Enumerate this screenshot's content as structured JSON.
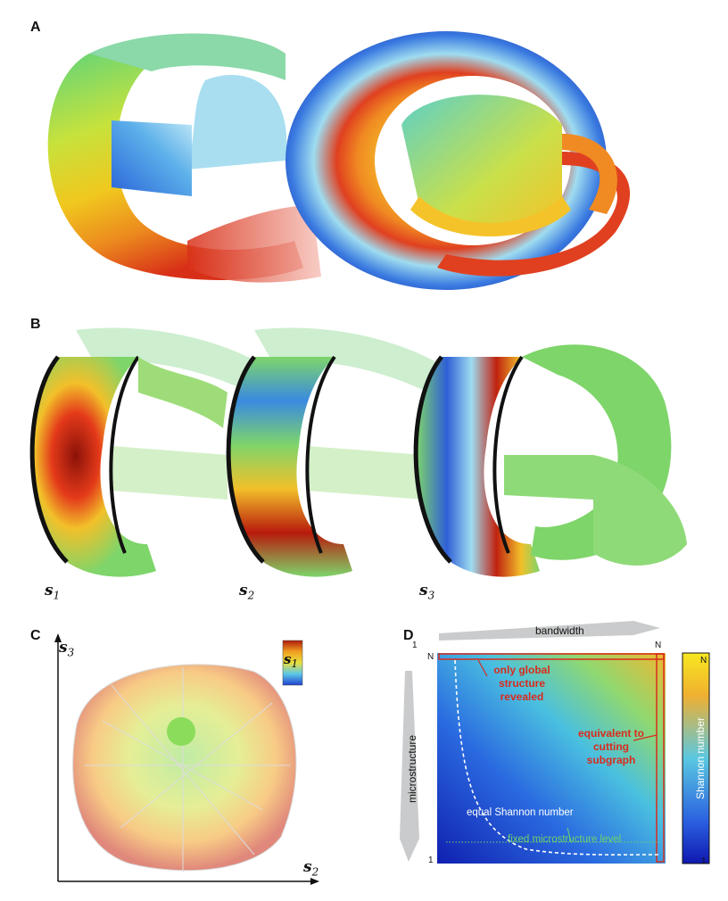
{
  "panels": {
    "a": {
      "label": "A"
    },
    "b": {
      "label": "B",
      "captions": [
        {
          "sym": "s",
          "sub": "1"
        },
        {
          "sym": "s",
          "sub": "2"
        },
        {
          "sym": "s",
          "sub": "3"
        }
      ]
    },
    "c": {
      "label": "C",
      "y_axis": "s",
      "y_sub": "3",
      "x_axis": "s",
      "x_sub": "2",
      "legend_sym": "s",
      "legend_sub": "1"
    },
    "d": {
      "label": "D",
      "top_axis": "bandwidth",
      "left_axis": "microstructure",
      "top_left_tick": "1",
      "top_right_tick": "N",
      "left_top_tick": "N",
      "left_bottom_tick": "1",
      "ann_global_1": "only global",
      "ann_global_2": "structure",
      "ann_global_3": "revealed",
      "ann_cut_1": "equivalent to",
      "ann_cut_2": "cutting",
      "ann_cut_3": "subgraph",
      "ann_equal": "equal Shannon number",
      "ann_fixed": "fixed microstructure level",
      "colorbar_label": "Shannon number",
      "colorbar_top": "N",
      "colorbar_bottom": "1",
      "colors": {
        "annotation": "#d92b1c",
        "fixed": "#6fd36a",
        "arrow": "#c9cbcc"
      }
    }
  }
}
